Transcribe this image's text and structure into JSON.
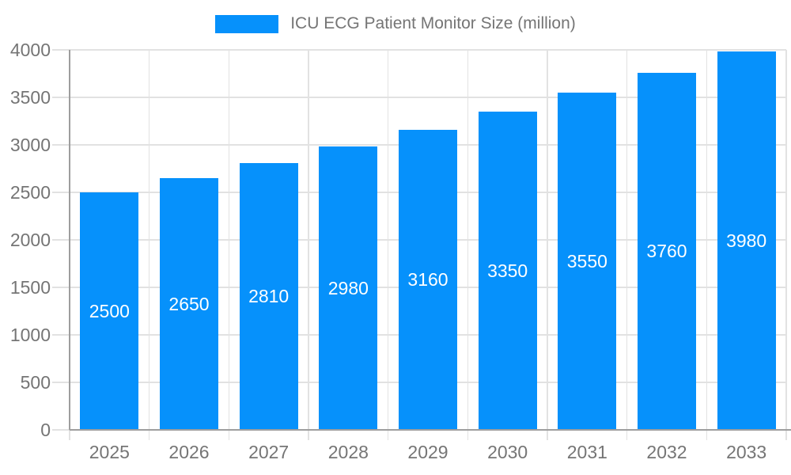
{
  "chart_data": {
    "type": "bar",
    "title": "",
    "legend_position": "top",
    "legend": [
      "ICU ECG Patient Monitor Size (million)"
    ],
    "categories": [
      "2025",
      "2026",
      "2027",
      "2028",
      "2029",
      "2030",
      "2031",
      "2032",
      "2033"
    ],
    "series": [
      {
        "name": "ICU ECG Patient Monitor Size (million)",
        "values": [
          2500,
          2650,
          2810,
          2980,
          3160,
          3350,
          3550,
          3760,
          3980
        ]
      }
    ],
    "data_labels": [
      "2500",
      "2650",
      "2810",
      "2980",
      "3160",
      "3350",
      "3550",
      "3760",
      "3980"
    ],
    "data_label_position": "inside-center",
    "xlabel": "",
    "ylabel": "",
    "ylim": [
      0,
      4000
    ],
    "yticks": [
      "0",
      "500",
      "1000",
      "1500",
      "2000",
      "2500",
      "3000",
      "3500",
      "4000"
    ],
    "grid": true,
    "colors": {
      "bar": "#0691FB",
      "text": "#757575",
      "axis": "#9E9E9E",
      "grid": "#E2E2E2",
      "bar_label": "#FFFFFF",
      "background": "#FFFFFF"
    }
  }
}
